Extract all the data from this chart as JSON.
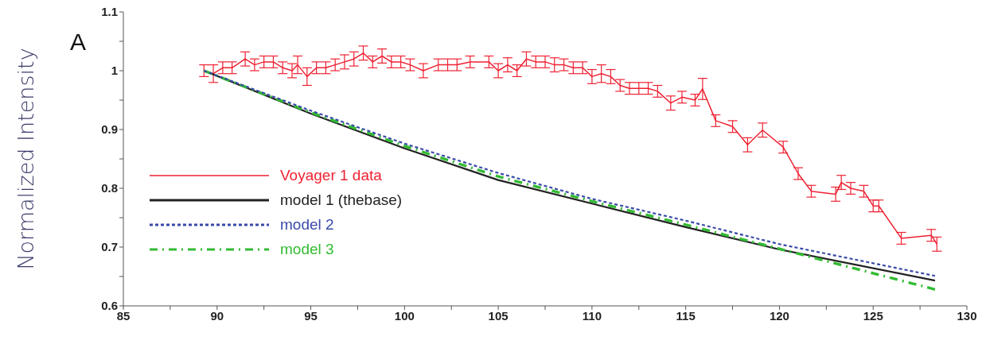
{
  "chart_data": {
    "type": "line",
    "ylabel": "Normalized Intensity",
    "annotations": [
      "A"
    ],
    "xlim": [
      85,
      130
    ],
    "xticks": [
      85,
      {
        "value": 87.5,
        "label": null
      },
      90,
      {
        "value": 92.5,
        "label": null
      },
      95,
      {
        "value": 97.5,
        "label": null
      },
      100,
      {
        "value": 102.5,
        "label": null
      },
      105,
      {
        "value": 107.5,
        "label": null
      },
      110,
      {
        "value": 112.5,
        "label": null
      },
      115,
      {
        "value": 117.5,
        "label": null
      },
      120,
      {
        "value": 122.5,
        "label": null
      },
      125,
      {
        "value": 127.5,
        "label": null
      },
      130
    ],
    "ylim": [
      0.6,
      1.1
    ],
    "yticks": [
      0.6,
      {
        "value": 0.65,
        "label": null
      },
      0.7,
      {
        "value": 0.75,
        "label": null
      },
      0.8,
      {
        "value": 0.85,
        "label": null
      },
      0.9,
      {
        "value": 0.95,
        "label": null
      },
      1,
      {
        "value": 1.05,
        "label": null
      },
      1.1
    ],
    "grid": false,
    "legend": "bottom left",
    "series": [
      {
        "name": "Voyager 1 data",
        "color": "#ee2233",
        "line_style": "solid",
        "x": [
          89.3,
          89.8,
          90.3,
          90.8,
          91.5,
          92,
          92.5,
          93,
          93.5,
          94,
          94.3,
          94.8,
          95.3,
          95.8,
          96.3,
          96.8,
          97.3,
          97.8,
          98.3,
          98.8,
          99.3,
          99.8,
          100.3,
          101,
          101.8,
          102.3,
          102.8,
          103.5,
          104.5,
          105,
          105.5,
          106,
          106.5,
          107,
          107.5,
          108,
          108.5,
          109,
          109.5,
          110,
          110.5,
          111,
          111.5,
          112,
          112.5,
          113,
          113.5,
          114.2,
          114.8,
          115.5,
          115.9,
          116.6,
          117.5,
          118.3,
          119.1,
          120.2,
          121,
          121.7,
          123,
          123.3,
          123.8,
          124.5,
          125,
          125.3,
          126.5,
          128.1,
          128.4
        ],
        "values": [
          1.0,
          0.995,
          1.005,
          1.005,
          1.02,
          1.01,
          1.015,
          1.015,
          1.005,
          1.0,
          1.01,
          0.99,
          1.005,
          1.005,
          1.01,
          1.015,
          1.02,
          1.03,
          1.015,
          1.025,
          1.015,
          1.015,
          1.01,
          1.0,
          1.01,
          1.01,
          1.01,
          1.015,
          1.015,
          1.0,
          1.01,
          1.0,
          1.02,
          1.015,
          1.015,
          1.01,
          1.01,
          1.005,
          1.005,
          0.99,
          0.995,
          0.99,
          0.975,
          0.97,
          0.97,
          0.97,
          0.965,
          0.945,
          0.955,
          0.95,
          0.969,
          0.915,
          0.905,
          0.874,
          0.899,
          0.87,
          0.825,
          0.795,
          0.79,
          0.81,
          0.8,
          0.795,
          0.77,
          0.77,
          0.715,
          0.72,
          0.705
        ],
        "errors": [
          0.01,
          0.015,
          0.01,
          0.01,
          0.012,
          0.01,
          0.01,
          0.01,
          0.01,
          0.012,
          0.015,
          0.015,
          0.01,
          0.01,
          0.01,
          0.012,
          0.012,
          0.012,
          0.01,
          0.012,
          0.01,
          0.01,
          0.01,
          0.012,
          0.01,
          0.01,
          0.01,
          0.01,
          0.01,
          0.012,
          0.012,
          0.01,
          0.012,
          0.01,
          0.01,
          0.012,
          0.01,
          0.01,
          0.01,
          0.012,
          0.015,
          0.012,
          0.01,
          0.01,
          0.01,
          0.01,
          0.01,
          0.012,
          0.01,
          0.01,
          0.018,
          0.01,
          0.01,
          0.012,
          0.012,
          0.01,
          0.01,
          0.01,
          0.012,
          0.012,
          0.01,
          0.01,
          0.01,
          0.01,
          0.01,
          0.01,
          0.012
        ]
      },
      {
        "name": "model 1 (thebase)",
        "color": "#222222",
        "line_style": "solid",
        "x": [
          89.3,
          95,
          100,
          105,
          110,
          115,
          120,
          128.3
        ],
        "values": [
          1.0,
          0.927,
          0.868,
          0.814,
          0.774,
          0.734,
          0.696,
          0.643
        ]
      },
      {
        "name": "model 2",
        "color": "#3a4aa8",
        "line_style": "dashed",
        "x": [
          89.3,
          95,
          100,
          105,
          110,
          115,
          120,
          128.3
        ],
        "values": [
          1.0,
          0.932,
          0.876,
          0.826,
          0.782,
          0.745,
          0.705,
          0.651
        ]
      },
      {
        "name": "model 3",
        "color": "#33bb33",
        "line_style": "dashdot",
        "x": [
          89.3,
          95,
          100,
          105,
          110,
          115,
          120,
          128.3
        ],
        "values": [
          1.0,
          0.929,
          0.872,
          0.82,
          0.778,
          0.738,
          0.697,
          0.628
        ]
      }
    ]
  }
}
